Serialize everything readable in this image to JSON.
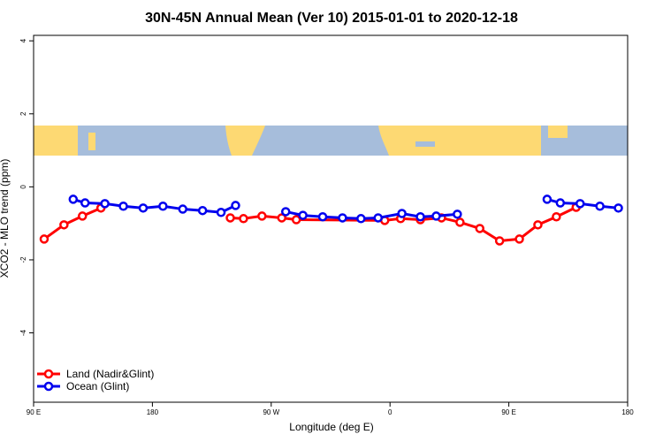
{
  "chart_data": {
    "type": "line",
    "title": "30N-45N Annual Mean (Ver 10)   2015-01-01 to 2020-12-18",
    "x_label": "Longitude (deg E)",
    "y_label": "XCO2 - MLO trend (ppm)",
    "xlim": [
      90,
      540
    ],
    "ylim": [
      -5.9,
      4.15
    ],
    "xticks": [
      {
        "value": 90,
        "label": "90 E"
      },
      {
        "value": 180,
        "label": "180"
      },
      {
        "value": 270,
        "label": "90 W"
      },
      {
        "value": 360,
        "label": "0"
      },
      {
        "value": 450,
        "label": "90 E"
      },
      {
        "value": 540,
        "label": "180"
      }
    ],
    "yticks": [
      -4,
      -2,
      0,
      2,
      4
    ],
    "legend": "bottom-left",
    "series": [
      {
        "name": "Land (Nadir&Glint)",
        "color": "#ff0000",
        "x": [
          98,
          113,
          127,
          141,
          190,
          239,
          249,
          263,
          278,
          289,
          356,
          368,
          383,
          399,
          413,
          428,
          443,
          458,
          472,
          486,
          501
        ],
        "values": [
          -1.43,
          -1.04,
          -0.8,
          -0.58,
          null,
          -0.85,
          -0.87,
          -0.8,
          -0.85,
          -0.9,
          -0.92,
          -0.87,
          -0.9,
          -0.85,
          -0.97,
          -1.14,
          -1.48,
          -1.43,
          -1.04,
          -0.82,
          -0.56
        ]
      },
      {
        "name": "Ocean (Glint)",
        "color": "#0000ee",
        "x": [
          120,
          129,
          144,
          158,
          173,
          188,
          203,
          218,
          232,
          243,
          262,
          281,
          294,
          309,
          324,
          338,
          351,
          369,
          383,
          395,
          411,
          445,
          479,
          489,
          504,
          519,
          533
        ],
        "values": [
          -0.34,
          -0.44,
          -0.46,
          -0.53,
          -0.58,
          -0.53,
          -0.61,
          -0.65,
          -0.7,
          -0.51,
          null,
          -0.68,
          -0.78,
          -0.82,
          -0.85,
          -0.87,
          -0.85,
          -0.73,
          -0.82,
          -0.8,
          -0.75,
          null,
          -0.34,
          -0.44,
          -0.46,
          -0.53,
          -0.58
        ]
      }
    ]
  }
}
